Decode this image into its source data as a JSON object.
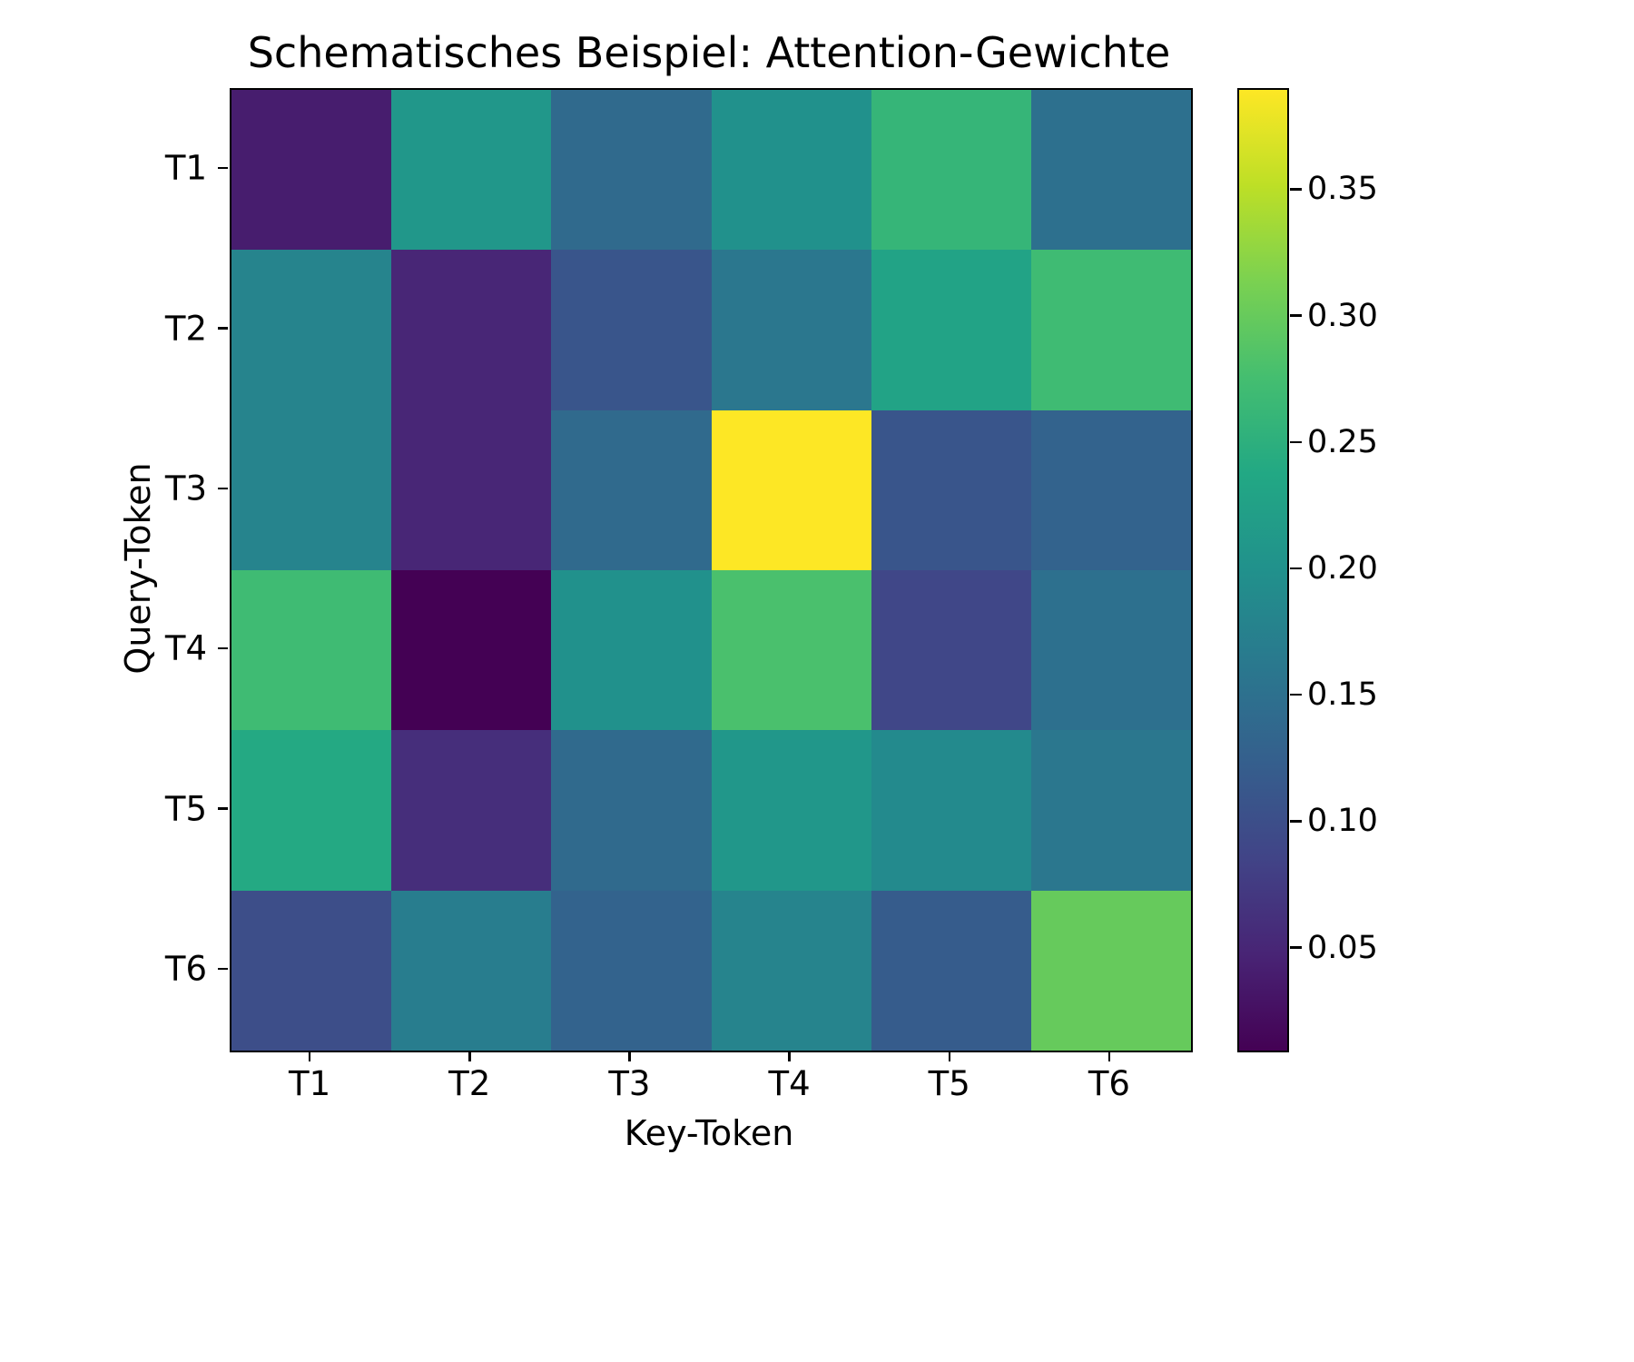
{
  "chart_data": {
    "type": "heatmap",
    "title": "Schematisches Beispiel: Attention-Gewichte",
    "xlabel": "Key-Token",
    "ylabel": "Query-Token",
    "x_categories": [
      "T1",
      "T2",
      "T3",
      "T4",
      "T5",
      "T6"
    ],
    "y_categories": [
      "T1",
      "T2",
      "T3",
      "T4",
      "T5",
      "T6"
    ],
    "values": [
      [
        0.04,
        0.21,
        0.14,
        0.2,
        0.26,
        0.15
      ],
      [
        0.18,
        0.05,
        0.11,
        0.16,
        0.23,
        0.27
      ],
      [
        0.18,
        0.05,
        0.14,
        0.39,
        0.11,
        0.13
      ],
      [
        0.27,
        0.01,
        0.2,
        0.28,
        0.09,
        0.15
      ],
      [
        0.24,
        0.06,
        0.14,
        0.21,
        0.19,
        0.16
      ],
      [
        0.1,
        0.17,
        0.13,
        0.18,
        0.12,
        0.3
      ]
    ],
    "colormap": "viridis",
    "vmin": 0.01,
    "vmax": 0.39,
    "colorbar_ticks": [
      0.05,
      0.1,
      0.15,
      0.2,
      0.25,
      0.3,
      0.35
    ],
    "grid": false,
    "legend": "colorbar-right"
  }
}
